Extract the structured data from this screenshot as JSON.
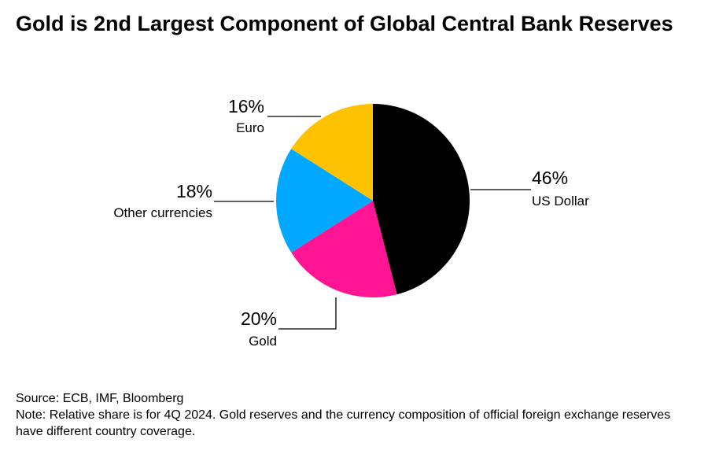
{
  "title": "Gold is 2nd Largest Component of Global Central Bank Reserves",
  "chart_data": {
    "type": "pie",
    "slices": [
      {
        "label": "US Dollar",
        "value": 46,
        "display": "46%",
        "color": "#000000"
      },
      {
        "label": "Gold",
        "value": 20,
        "display": "20%",
        "color": "#ff1493"
      },
      {
        "label": "Other currencies",
        "value": 18,
        "display": "18%",
        "color": "#00a8ff"
      },
      {
        "label": "Euro",
        "value": 16,
        "display": "16%",
        "color": "#ffc200"
      }
    ]
  },
  "source": "Source: ECB, IMF, Bloomberg",
  "note": "Note: Relative share is for 4Q 2024. Gold reserves and the currency composition of official foreign exchange reserves have different country coverage."
}
